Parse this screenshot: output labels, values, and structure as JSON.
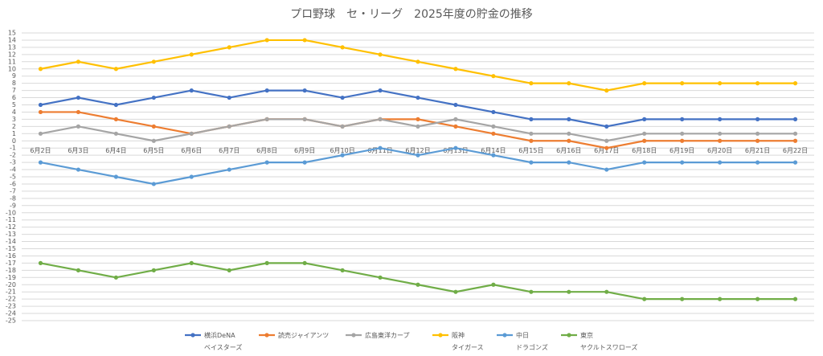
{
  "chart_data": {
    "type": "line",
    "title": "プロ野球　セ・リーグ　2025年度の貯金の推移",
    "categories": [
      "6月2日",
      "6月3日",
      "6月4日",
      "6月5日",
      "6月6日",
      "6月7日",
      "6月8日",
      "6月9日",
      "6月10日",
      "6月11日",
      "6月12日",
      "6月13日",
      "6月14日",
      "6月15日",
      "6月16日",
      "6月17日",
      "6月18日",
      "6月19日",
      "6月20日",
      "6月21日",
      "6月22日"
    ],
    "series": [
      {
        "name": "横浜DeNA\nベイスターズ",
        "color": "#4472c4",
        "values": [
          5,
          6,
          5,
          6,
          7,
          6,
          7,
          7,
          6,
          7,
          6,
          5,
          4,
          3,
          3,
          2,
          3,
          3,
          3,
          3,
          3
        ]
      },
      {
        "name": "読売ジャイアンツ",
        "color": "#ed7d31",
        "values": [
          4,
          4,
          3,
          2,
          1,
          2,
          3,
          3,
          2,
          3,
          3,
          2,
          1,
          0,
          0,
          -1,
          0,
          0,
          0,
          0,
          0
        ]
      },
      {
        "name": "広島東洋カープ",
        "color": "#a5a5a5",
        "values": [
          1,
          2,
          1,
          0,
          1,
          2,
          3,
          3,
          2,
          3,
          2,
          3,
          2,
          1,
          1,
          0,
          1,
          1,
          1,
          1,
          1
        ]
      },
      {
        "name": "阪神\nタイガース",
        "color": "#ffc000",
        "values": [
          10,
          11,
          10,
          11,
          12,
          13,
          14,
          14,
          13,
          12,
          11,
          10,
          9,
          8,
          8,
          7,
          8,
          8,
          8,
          8,
          8
        ]
      },
      {
        "name": "中日\nドラゴンズ",
        "color": "#5b9bd5",
        "values": [
          -3,
          -4,
          -5,
          -6,
          -5,
          -4,
          -3,
          -3,
          -2,
          -1,
          -2,
          -1,
          -2,
          -3,
          -3,
          -4,
          -3,
          -3,
          -3,
          -3,
          -3
        ]
      },
      {
        "name": "東京\nヤクルトスワローズ",
        "color": "#70ad47",
        "values": [
          -17,
          -18,
          -19,
          -18,
          -17,
          -18,
          -17,
          -17,
          -18,
          -19,
          -20,
          -21,
          -20,
          -21,
          -21,
          -21,
          -22,
          -22,
          -22,
          -22,
          -22
        ]
      }
    ],
    "ylim": [
      -25,
      15
    ],
    "yticks": [
      15,
      14,
      13,
      12,
      11,
      10,
      9,
      8,
      7,
      6,
      5,
      4,
      3,
      2,
      1,
      0,
      -1,
      -2,
      -3,
      -4,
      -5,
      -6,
      -7,
      -8,
      -9,
      -10,
      -11,
      -12,
      -13,
      -14,
      -15,
      -16,
      -17,
      -18,
      -19,
      -20,
      -21,
      -22,
      -23,
      -24,
      -25
    ],
    "grid": true,
    "legend": "bottom"
  }
}
